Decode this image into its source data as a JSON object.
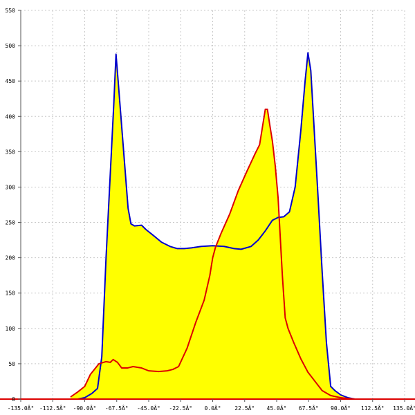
{
  "chart_data": {
    "type": "area",
    "title": "",
    "xlabel": "",
    "ylabel": "",
    "xlim": [
      -135,
      135
    ],
    "ylim": [
      0,
      550
    ],
    "grid": true,
    "x_ticks": [
      {
        "value": -135,
        "label": "-135.0Â°"
      },
      {
        "value": -112.5,
        "label": "-112.5Â°"
      },
      {
        "value": -90,
        "label": "-90.0Â°"
      },
      {
        "value": -67.5,
        "label": "-67.5Â°"
      },
      {
        "value": -45,
        "label": "-45.0Â°"
      },
      {
        "value": -22.5,
        "label": "-22.5Â°"
      },
      {
        "value": 0,
        "label": "0.0Â°"
      },
      {
        "value": 22.5,
        "label": "22.5Â°"
      },
      {
        "value": 45,
        "label": "45.0Â°"
      },
      {
        "value": 67.5,
        "label": "67.5Â°"
      },
      {
        "value": 90,
        "label": "90.0Â°"
      },
      {
        "value": 112.5,
        "label": "112.5Â°"
      },
      {
        "value": 135,
        "label": "135.0Â°"
      }
    ],
    "y_ticks": [
      {
        "value": 0,
        "label": "0"
      },
      {
        "value": 50,
        "label": "50"
      },
      {
        "value": 100,
        "label": "100"
      },
      {
        "value": 150,
        "label": "150"
      },
      {
        "value": 200,
        "label": "200"
      },
      {
        "value": 250,
        "label": "250"
      },
      {
        "value": 300,
        "label": "300"
      },
      {
        "value": 350,
        "label": "350"
      },
      {
        "value": 400,
        "label": "400"
      },
      {
        "value": 450,
        "label": "450"
      },
      {
        "value": 500,
        "label": "500"
      },
      {
        "value": 550,
        "label": "550"
      }
    ],
    "series": [
      {
        "color": "#0000cc",
        "fill": "#ffff00",
        "points": [
          [
            -95,
            0
          ],
          [
            -90,
            2
          ],
          [
            -85,
            8
          ],
          [
            -81,
            15
          ],
          [
            -78,
            60
          ],
          [
            -75,
            200
          ],
          [
            -72,
            320
          ],
          [
            -69.5,
            420
          ],
          [
            -68,
            488
          ],
          [
            -66.5,
            450
          ],
          [
            -63,
            360
          ],
          [
            -59.5,
            270
          ],
          [
            -57.5,
            248
          ],
          [
            -55,
            245
          ],
          [
            -50,
            246
          ],
          [
            -47,
            240
          ],
          [
            -42,
            232
          ],
          [
            -36,
            222
          ],
          [
            -30,
            216
          ],
          [
            -25,
            213
          ],
          [
            -20,
            213
          ],
          [
            -15,
            214
          ],
          [
            -8,
            216
          ],
          [
            0,
            217
          ],
          [
            8,
            216
          ],
          [
            15,
            213
          ],
          [
            20,
            212
          ],
          [
            27,
            216
          ],
          [
            32,
            225
          ],
          [
            37,
            238
          ],
          [
            42,
            253
          ],
          [
            46,
            257
          ],
          [
            50,
            258
          ],
          [
            54,
            265
          ],
          [
            58,
            300
          ],
          [
            62,
            380
          ],
          [
            65,
            450
          ],
          [
            67,
            490
          ],
          [
            69,
            465
          ],
          [
            72,
            360
          ],
          [
            74,
            290
          ],
          [
            77,
            180
          ],
          [
            80,
            80
          ],
          [
            83,
            18
          ],
          [
            86,
            12
          ],
          [
            90,
            6
          ],
          [
            95,
            2
          ],
          [
            100,
            0
          ]
        ]
      },
      {
        "color": "#dd0000",
        "fill": "#ffff00",
        "points": [
          [
            -100,
            3
          ],
          [
            -95,
            10
          ],
          [
            -90,
            18
          ],
          [
            -86,
            35
          ],
          [
            -80,
            50
          ],
          [
            -75,
            53
          ],
          [
            -72,
            52
          ],
          [
            -70,
            56
          ],
          [
            -67,
            52
          ],
          [
            -64,
            44
          ],
          [
            -60,
            44
          ],
          [
            -56,
            46
          ],
          [
            -50,
            44
          ],
          [
            -45,
            40
          ],
          [
            -38,
            39
          ],
          [
            -32,
            40
          ],
          [
            -28,
            42
          ],
          [
            -24,
            46
          ],
          [
            -18,
            72
          ],
          [
            -12,
            108
          ],
          [
            -6,
            140
          ],
          [
            -2,
            175
          ],
          [
            0,
            200
          ],
          [
            2,
            215
          ],
          [
            6,
            235
          ],
          [
            12,
            262
          ],
          [
            18,
            295
          ],
          [
            24,
            322
          ],
          [
            30,
            348
          ],
          [
            33,
            360
          ],
          [
            35,
            385
          ],
          [
            37,
            410
          ],
          [
            38.5,
            410
          ],
          [
            40,
            390
          ],
          [
            42,
            365
          ],
          [
            44,
            330
          ],
          [
            46,
            285
          ],
          [
            47.5,
            230
          ],
          [
            49,
            175
          ],
          [
            51,
            115
          ],
          [
            53,
            100
          ],
          [
            57,
            80
          ],
          [
            62,
            57
          ],
          [
            67,
            38
          ],
          [
            72,
            25
          ],
          [
            77,
            12
          ],
          [
            83,
            5
          ],
          [
            90,
            2
          ],
          [
            100,
            0
          ]
        ]
      }
    ]
  }
}
